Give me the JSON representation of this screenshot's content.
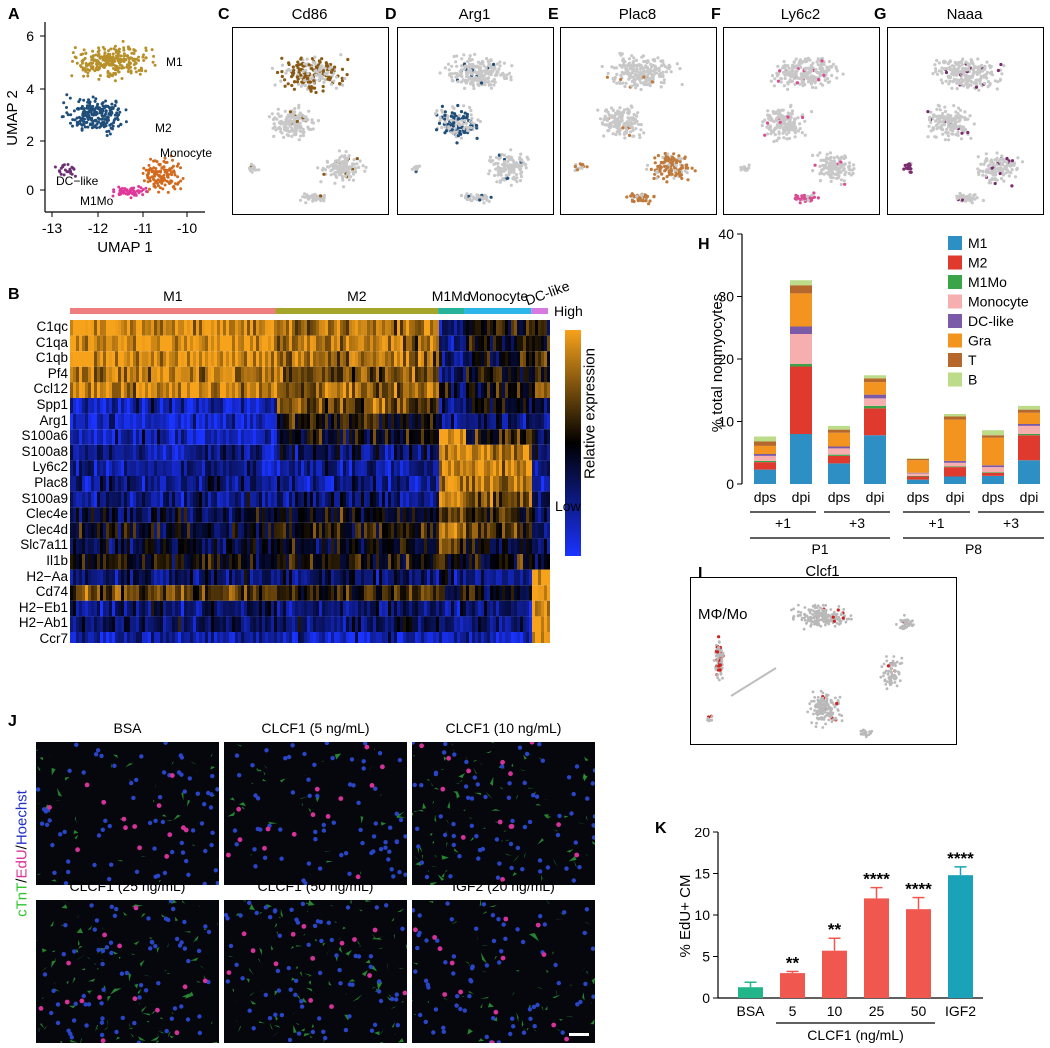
{
  "panel_letters": [
    "A",
    "B",
    "C",
    "D",
    "E",
    "F",
    "G",
    "H",
    "I",
    "J",
    "K"
  ],
  "panelA": {
    "xlabel": "UMAP 1",
    "ylabel": "UMAP 2",
    "x_ticks": [
      "-13",
      "-12",
      "-11",
      "-10"
    ],
    "y_ticks": [
      "0",
      "2",
      "4",
      "6"
    ],
    "clusters": [
      {
        "name": "M1",
        "color": "#b8902a"
      },
      {
        "name": "M2",
        "color": "#1f4e7a"
      },
      {
        "name": "Monocyte",
        "color": "#d26a1e"
      },
      {
        "name": "DC−like",
        "color": "#6d2f74"
      },
      {
        "name": "M1Mo",
        "color": "#e0379a"
      }
    ]
  },
  "featurePlots": [
    {
      "letter": "C",
      "gene": "Cd86",
      "color": "#8a5a14"
    },
    {
      "letter": "D",
      "gene": "Arg1",
      "color": "#1f4e7a"
    },
    {
      "letter": "E",
      "gene": "Plac8",
      "color": "#c07a3c"
    },
    {
      "letter": "F",
      "gene": "Ly6c2",
      "color": "#d94d92"
    },
    {
      "letter": "G",
      "gene": "Naaa",
      "color": "#7a2b6e"
    }
  ],
  "panelB": {
    "groups": [
      {
        "name": "M1",
        "color": "#ef7f7f",
        "frac": 0.43
      },
      {
        "name": "M2",
        "color": "#a5a52a",
        "frac": 0.34
      },
      {
        "name": "M1Mo",
        "color": "#26b39a",
        "frac": 0.055
      },
      {
        "name": "Monocyte",
        "color": "#2cb5e8",
        "frac": 0.14
      },
      {
        "name": "DC-like",
        "color": "#d77ae0",
        "frac": 0.035
      }
    ],
    "genes": [
      "C1qc",
      "C1qa",
      "C1qb",
      "Pf4",
      "Ccl12",
      "Spp1",
      "Arg1",
      "S100a6",
      "S100a8",
      "Ly6c2",
      "Plac8",
      "S100a9",
      "Clec4e",
      "Clec4d",
      "Slc7a11",
      "Il1b",
      "H2−Aa",
      "Cd74",
      "H2−Eb1",
      "H2−Ab1",
      "Ccr7"
    ],
    "legend_high": "High",
    "legend_low": "Low",
    "legend_title": "Relative expression"
  },
  "chart_data": [
    {
      "type": "bar",
      "panel": "H",
      "stacked": true,
      "ylabel": "% total nonmyocytes",
      "ylim": [
        0,
        40
      ],
      "yticks": [
        0,
        10,
        20,
        30,
        40
      ],
      "categories": [
        "dps",
        "dpi",
        "dps",
        "dpi",
        "dps",
        "dpi",
        "dps",
        "dpi"
      ],
      "subgroups": [
        "+1",
        "+3",
        "+1",
        "+3"
      ],
      "groups": [
        "P1",
        "P8"
      ],
      "legend_position": "top-right",
      "series": [
        {
          "name": "M1",
          "color": "#2d8fc4",
          "values": [
            2.3,
            8.0,
            3.3,
            7.8,
            0.7,
            1.2,
            1.3,
            3.8
          ]
        },
        {
          "name": "M2",
          "color": "#e03a2e",
          "values": [
            1.2,
            10.8,
            1.2,
            4.3,
            0.5,
            1.5,
            0.5,
            4.0
          ]
        },
        {
          "name": "M1Mo",
          "color": "#3aa548",
          "values": [
            0.2,
            0.4,
            0.2,
            0.4,
            0.1,
            0.1,
            0.1,
            0.2
          ]
        },
        {
          "name": "Monocyte",
          "color": "#f6aeae",
          "values": [
            0.8,
            4.8,
            1.0,
            1.2,
            0.4,
            0.6,
            0.8,
            1.3
          ]
        },
        {
          "name": "DC-like",
          "color": "#7b5aa8",
          "values": [
            0.3,
            1.2,
            0.3,
            0.6,
            0.1,
            0.3,
            0.3,
            0.3
          ]
        },
        {
          "name": "Gra",
          "color": "#f39420",
          "values": [
            1.3,
            5.3,
            2.2,
            2.0,
            2.0,
            6.6,
            4.4,
            1.8
          ]
        },
        {
          "name": "T",
          "color": "#b5672c",
          "values": [
            0.7,
            1.3,
            0.5,
            0.6,
            0.2,
            0.5,
            0.4,
            0.5
          ]
        },
        {
          "name": "B",
          "color": "#bcdc8a",
          "values": [
            0.8,
            0.8,
            0.6,
            0.5,
            0.1,
            0.4,
            0.8,
            0.6
          ]
        }
      ]
    },
    {
      "type": "bar",
      "panel": "K",
      "ylabel": "% EdU+ CM",
      "ylim": [
        0,
        20
      ],
      "yticks": [
        0,
        5,
        10,
        15,
        20
      ],
      "categories": [
        "BSA",
        "5",
        "10",
        "25",
        "50",
        "IGF2"
      ],
      "values": [
        1.3,
        3.0,
        5.7,
        12.0,
        10.7,
        14.8
      ],
      "errors": [
        0.6,
        0.2,
        1.5,
        1.3,
        1.4,
        1.0
      ],
      "significance": [
        "",
        "**",
        "**",
        "****",
        "****",
        "****"
      ],
      "colors": [
        "#23b58a",
        "#f0574f",
        "#f0574f",
        "#f0574f",
        "#f0574f",
        "#1aa3b8"
      ],
      "group_label": "CLCF1 (ng/mL)"
    }
  ],
  "panelI": {
    "title": "Clcf1",
    "label": "MΦ/Mo"
  },
  "panelJ": {
    "ylabel_parts": [
      {
        "text": "cTnT",
        "color": "#2ec42e"
      },
      {
        "text": "/",
        "color": "#000000"
      },
      {
        "text": "EdU",
        "color": "#d9339c"
      },
      {
        "text": "/",
        "color": "#000000"
      },
      {
        "text": "Hoechst",
        "color": "#2230c8"
      }
    ],
    "images": [
      {
        "title": "BSA",
        "density": 0.35
      },
      {
        "title": "CLCF1 (5 ng/mL)",
        "density": 0.3
      },
      {
        "title": "CLCF1 (10 ng/mL)",
        "density": 0.85
      },
      {
        "title": "CLCF1 (25 ng/mL)",
        "density": 0.95
      },
      {
        "title": "CLCF1 (50 ng/mL)",
        "density": 0.9
      },
      {
        "title": "IGF2 (20 ng/mL)",
        "density": 0.55
      }
    ]
  }
}
